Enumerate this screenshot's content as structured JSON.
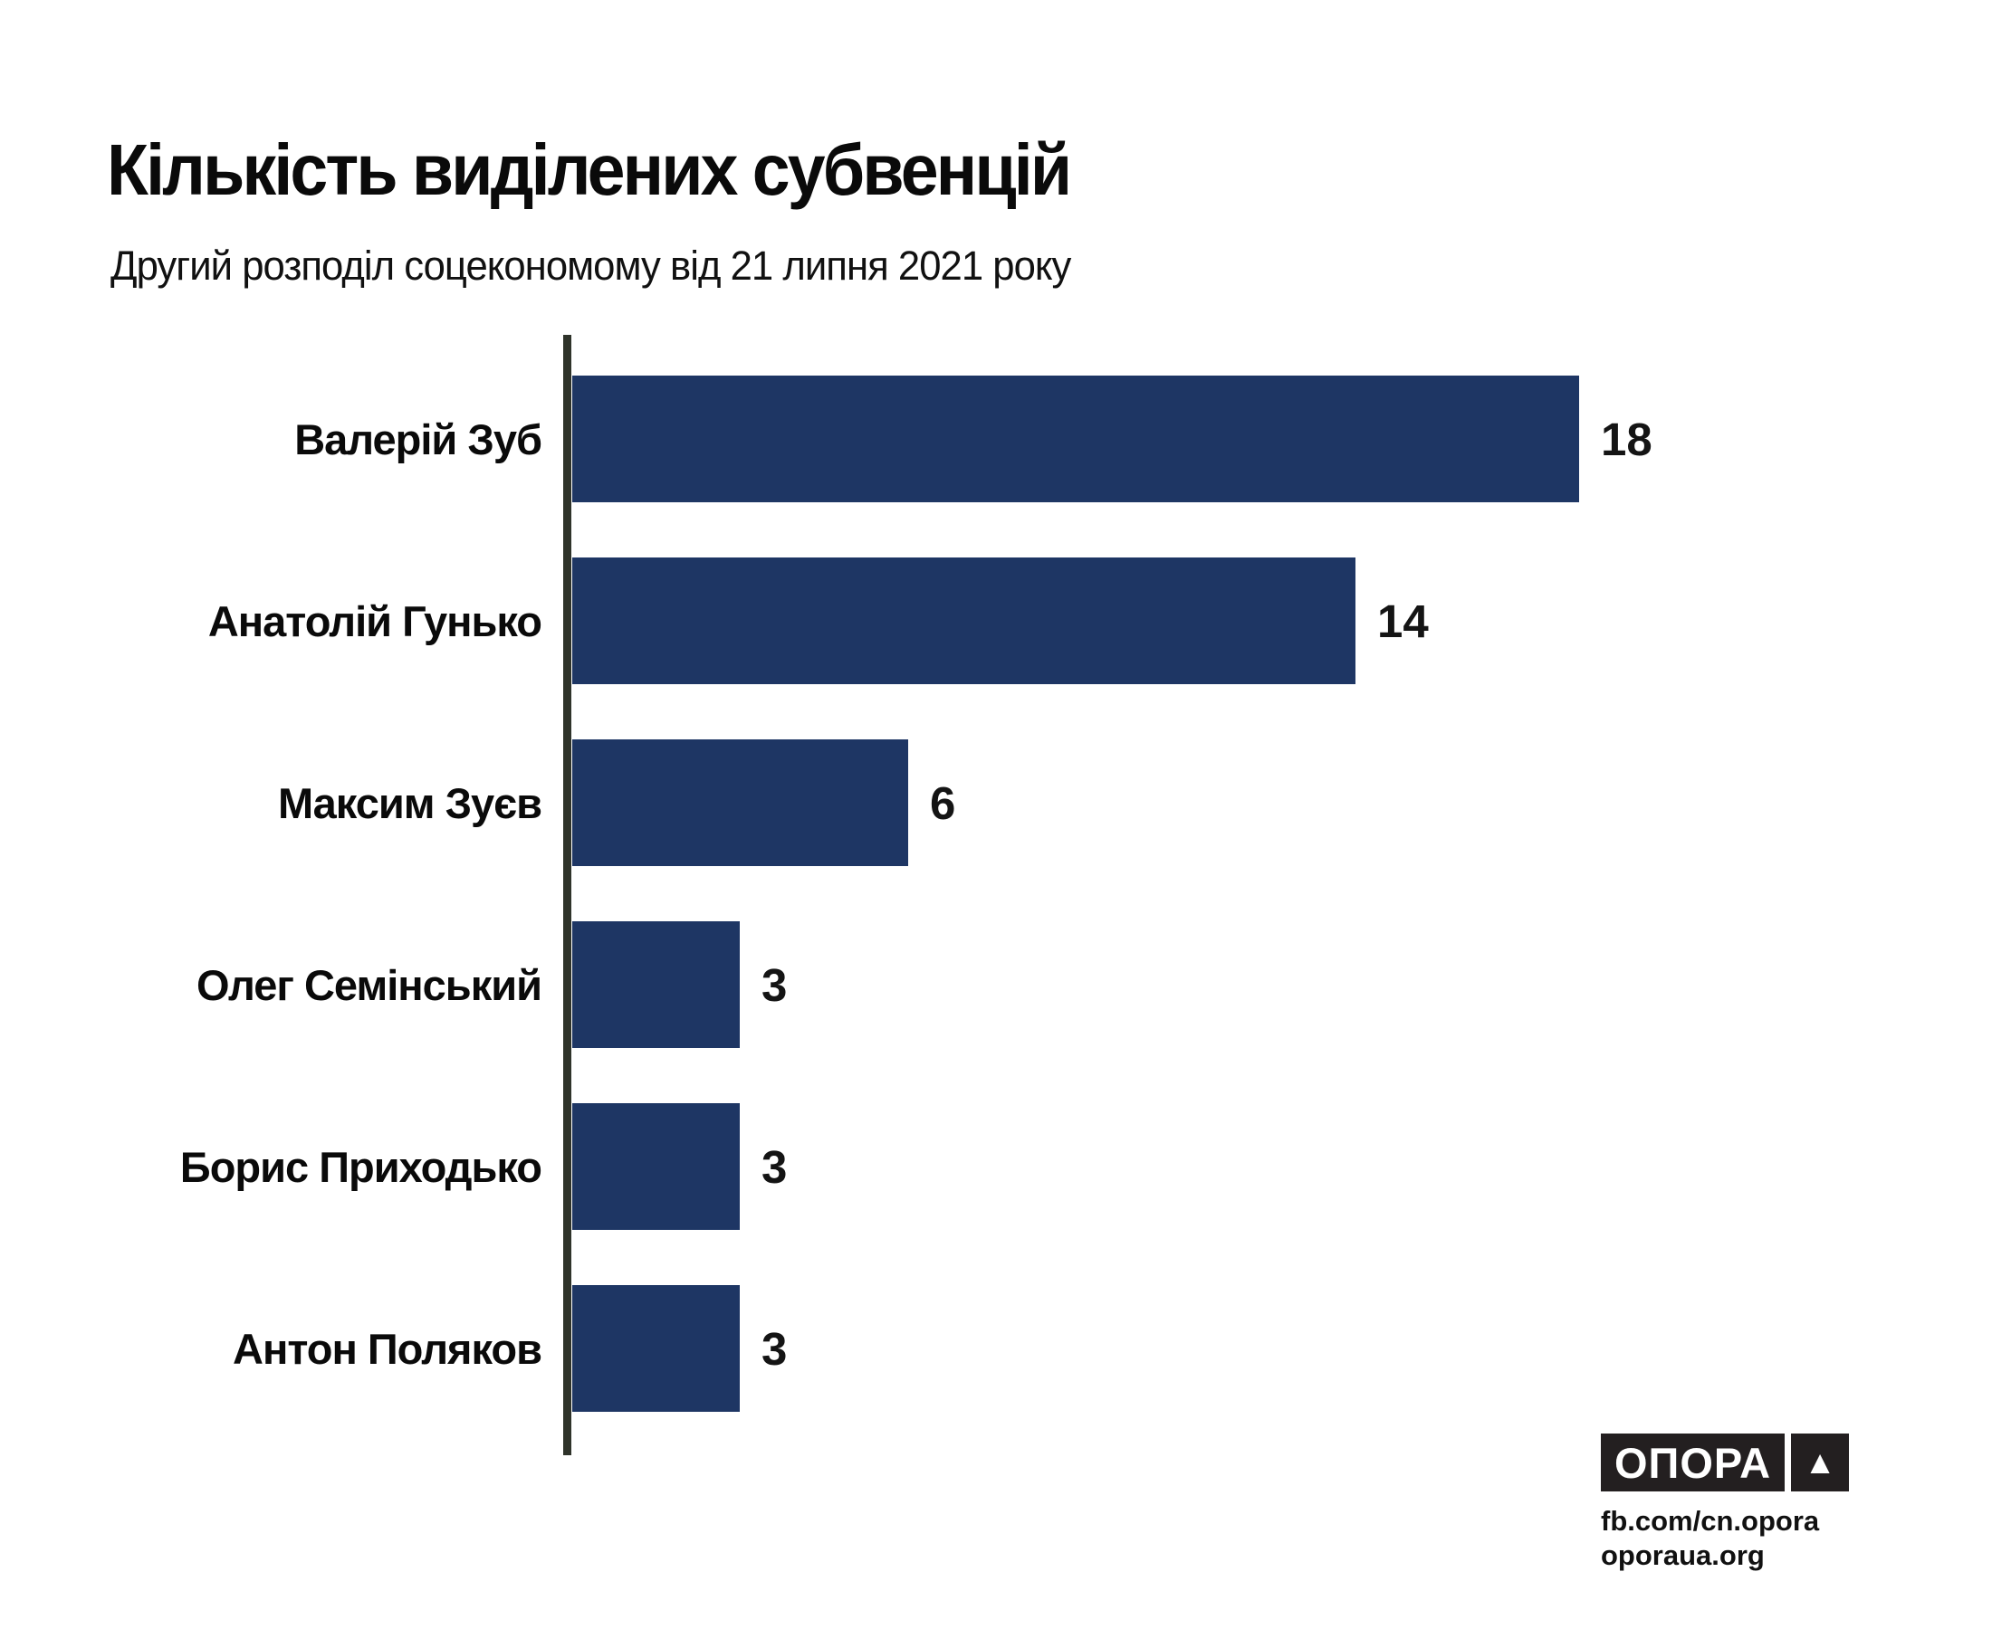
{
  "page": {
    "title": "Кількість виділених субвенцій",
    "subtitle": "Другий розподіл соцекономому від 21 липня 2021 року"
  },
  "chart_data": {
    "type": "bar",
    "orientation": "horizontal",
    "title": "Кількість виділених субвенцій",
    "subtitle": "Другий розподіл соцекономому від 21 липня 2021 року",
    "categories": [
      "Валерій Зуб",
      "Анатолій Гунько",
      "Максим Зуєв",
      "Олег Семінський",
      "Борис Приходько",
      "Антон Поляков"
    ],
    "values": [
      18,
      14,
      6,
      3,
      3,
      3
    ],
    "xlim": [
      0,
      18
    ],
    "grid": false,
    "data_labels": true,
    "legend": false,
    "bar_color": "#1e3664",
    "axis_color": "#2f332a"
  },
  "footer": {
    "logo_text": "ОПОРА",
    "logo_mark": "▲",
    "links": [
      "fb.com/cn.opora",
      "oporaua.org"
    ]
  }
}
